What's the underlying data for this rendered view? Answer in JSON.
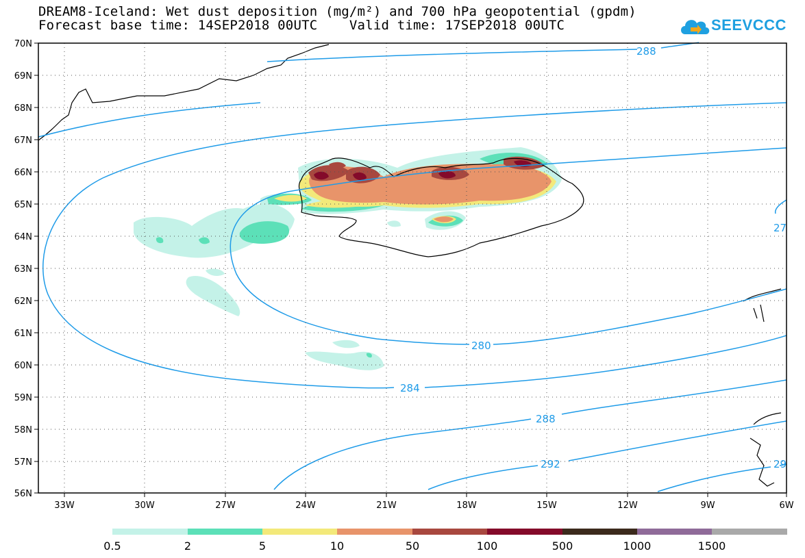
{
  "title": {
    "line1": "DREAM8-Iceland: Wet dust deposition (mg/m²) and 700 hPa geopotential (gpdm)",
    "line2": "Forecast base time: 14SEP2018 00UTC    Valid time: 17SEP2018 00UTC"
  },
  "logo": {
    "text": "SEEVCCC",
    "icon": "cloud-icon"
  },
  "map": {
    "lat_labels": [
      "70N",
      "69N",
      "68N",
      "67N",
      "66N",
      "65N",
      "64N",
      "63N",
      "62N",
      "61N",
      "60N",
      "59N",
      "58N",
      "57N",
      "56N"
    ],
    "lon_labels": [
      "33W",
      "30W",
      "27W",
      "24W",
      "21W",
      "18W",
      "15W",
      "12W",
      "9W",
      "6W"
    ],
    "contour_labels": [
      "288",
      "280",
      "284",
      "288",
      "292",
      "27",
      "29"
    ],
    "colors": {
      "contour": "#1e9be8",
      "coast": "#000000"
    }
  },
  "colorbar": {
    "labels": [
      "0.5",
      "2",
      "5",
      "10",
      "50",
      "100",
      "500",
      "1000",
      "1500"
    ],
    "colors": [
      "#c4f2e8",
      "#5ce0b8",
      "#f3e97a",
      "#e8946a",
      "#a8483f",
      "#840a2a",
      "#3b2a1c",
      "#8f6b99",
      "#a9a9a9"
    ]
  }
}
